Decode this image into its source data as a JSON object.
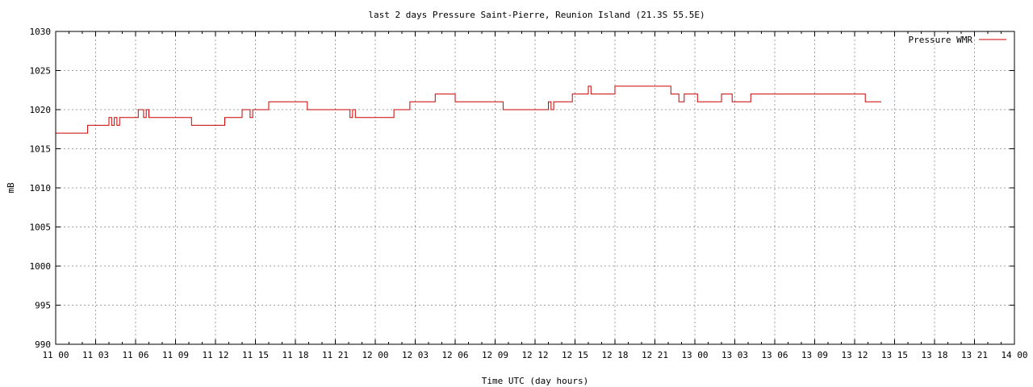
{
  "chart_data": {
    "type": "line",
    "title": "last 2 days Pressure Saint-Pierre, Reunion Island (21.3S 55.5E)",
    "xlabel": "Time UTC (day hours)",
    "ylabel": "mB",
    "ylim": [
      990,
      1030
    ],
    "yticks": [
      990,
      995,
      1000,
      1005,
      1010,
      1015,
      1020,
      1025,
      1030
    ],
    "xlim": [
      0,
      72
    ],
    "x_unit": "hours since 11 00 UTC",
    "xtick_labels": [
      "11 00",
      "11 03",
      "11 06",
      "11 09",
      "11 12",
      "11 15",
      "11 18",
      "11 21",
      "12 00",
      "12 03",
      "12 06",
      "12 09",
      "12 12",
      "12 15",
      "12 18",
      "12 21",
      "13 00",
      "13 03",
      "13 06",
      "13 09",
      "13 12",
      "13 15",
      "13 18",
      "13 21",
      "14 00"
    ],
    "grid": true,
    "legend_position": "top-right",
    "colors": {
      "series": "#cc0000",
      "grid": "#a0a0a0"
    },
    "series": [
      {
        "name": "Pressure WMR",
        "step": true,
        "x": [
          0.0,
          2.4,
          4.0,
          4.2,
          4.4,
          4.6,
          4.8,
          5.0,
          6.2,
          6.6,
          6.8,
          7.0,
          10.2,
          12.7,
          14.0,
          14.6,
          14.8,
          15.0,
          16.0,
          18.9,
          22.1,
          22.3,
          22.5,
          25.4,
          26.6,
          28.5,
          30.0,
          33.6,
          37.0,
          37.2,
          37.4,
          38.8,
          40.0,
          40.2,
          41.0,
          42.0,
          46.2,
          46.8,
          47.2,
          48.2,
          49.0,
          50.0,
          50.8,
          51.2,
          52.2,
          52.6,
          55.0,
          60.8
        ],
        "values": [
          1017,
          1018,
          1019,
          1018,
          1019,
          1018,
          1019,
          1019,
          1020,
          1019,
          1020,
          1019,
          1018,
          1019,
          1020,
          1019,
          1020,
          1020,
          1021,
          1020,
          1019,
          1020,
          1019,
          1020,
          1021,
          1022,
          1021,
          1020,
          1021,
          1020,
          1021,
          1022,
          1023,
          1022,
          1022,
          1023,
          1022,
          1021,
          1022,
          1021,
          1021,
          1022,
          1021,
          1021,
          1022,
          1022,
          1022,
          1021
        ],
        "x_end": 62.0
      }
    ]
  }
}
